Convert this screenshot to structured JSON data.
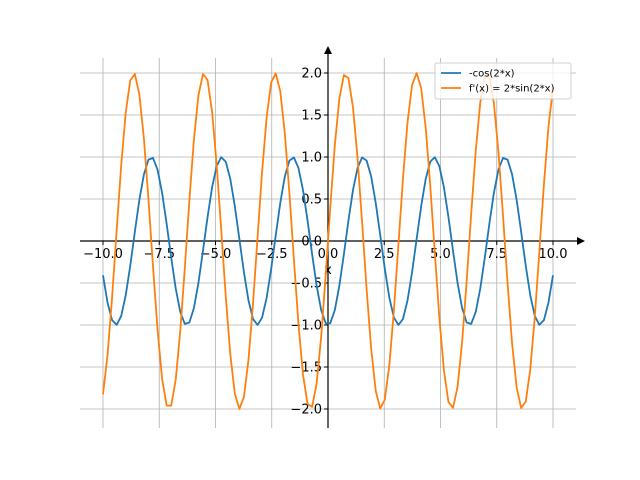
{
  "chart_data": {
    "type": "line",
    "title": "",
    "xlabel": "x",
    "ylabel": "",
    "xlim": [
      -10,
      10
    ],
    "ylim": [
      -2,
      2
    ],
    "x_ticks": [
      -10.0,
      -7.5,
      -5.0,
      -2.5,
      0.0,
      2.5,
      5.0,
      7.5,
      10.0
    ],
    "x_tick_labels": [
      "−10.0",
      "−7.5",
      "−5.0",
      "−2.5",
      "0.0",
      "2.5",
      "5.0",
      "7.5",
      "10.0"
    ],
    "y_ticks": [
      -2.0,
      -1.5,
      -1.0,
      -0.5,
      0.0,
      0.5,
      1.0,
      1.5,
      2.0
    ],
    "y_tick_labels": [
      "−2.0",
      "−1.5",
      "−1.0",
      "−0.5",
      "0.0",
      "0.5",
      "1.0",
      "1.5",
      "2.0"
    ],
    "grid": true,
    "legend_position": "top-right",
    "series": [
      {
        "name": "-cos(2*x)",
        "color": "#1f77b4",
        "x": [
          -10.0,
          -9.5,
          -9.0,
          -8.5,
          -8.0,
          -7.5,
          -7.0,
          -6.5,
          -6.0,
          -5.5,
          -5.0,
          -4.5,
          -4.0,
          -3.5,
          -3.0,
          -2.5,
          -2.0,
          -1.5,
          -1.0,
          -0.5,
          0.0,
          0.5,
          1.0,
          1.5,
          2.0,
          2.5,
          3.0,
          3.5,
          4.0,
          4.5,
          5.0,
          5.5,
          6.0,
          6.5,
          7.0,
          7.5,
          8.0,
          8.5,
          9.0,
          9.5,
          10.0
        ],
        "y": [
          -0.408,
          -0.988,
          -0.66,
          0.275,
          0.958,
          0.76,
          -0.137,
          -0.907,
          -0.844,
          0.004,
          0.839,
          0.911,
          0.146,
          -0.754,
          -0.96,
          -0.284,
          0.654,
          0.99,
          0.416,
          -0.54,
          -1.0,
          -0.54,
          0.416,
          0.99,
          0.654,
          -0.284,
          -0.96,
          -0.754,
          0.146,
          0.911,
          0.839,
          0.004,
          -0.844,
          -0.907,
          -0.137,
          0.76,
          0.958,
          0.275,
          -0.66,
          -0.988,
          -0.408
        ]
      },
      {
        "name": "f'(x) = 2*sin(2*x)",
        "color": "#ff7f0e",
        "x": [
          -10.0,
          -9.5,
          -9.0,
          -8.5,
          -8.0,
          -7.5,
          -7.0,
          -6.5,
          -6.0,
          -5.5,
          -5.0,
          -4.5,
          -4.0,
          -3.5,
          -3.0,
          -2.5,
          -2.0,
          -1.5,
          -1.0,
          -0.5,
          0.0,
          0.5,
          1.0,
          1.5,
          2.0,
          2.5,
          3.0,
          3.5,
          4.0,
          4.5,
          5.0,
          5.5,
          6.0,
          6.5,
          7.0,
          7.5,
          8.0,
          8.5,
          9.0,
          9.5,
          10.0
        ],
        "y": [
          -1.826,
          -0.3,
          1.502,
          1.922,
          0.576,
          -1.3,
          -1.981,
          -0.84,
          1.073,
          2.0,
          1.088,
          -0.824,
          -1.979,
          -1.314,
          0.559,
          1.918,
          1.514,
          -0.282,
          -1.819,
          -1.683,
          0.0,
          1.683,
          1.819,
          0.282,
          -1.514,
          -1.918,
          -0.559,
          1.314,
          1.979,
          0.824,
          -1.088,
          -2.0,
          -1.073,
          0.84,
          1.981,
          1.3,
          -0.576,
          -1.922,
          -1.502,
          0.3,
          1.826
        ]
      }
    ]
  }
}
